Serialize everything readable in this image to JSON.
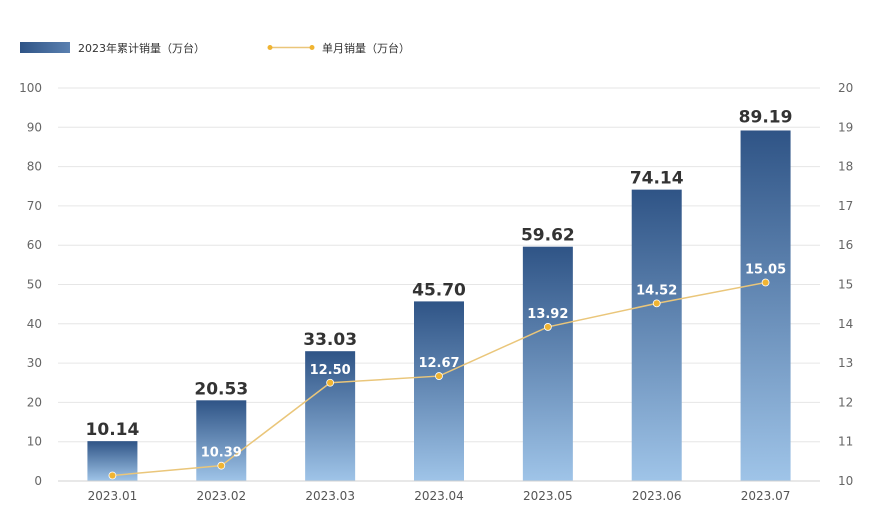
{
  "legend": {
    "cumulative_label": "2023年累计销量（万台）",
    "monthly_label": "单月销量（万台）"
  },
  "colors": {
    "bar_top": "#2f5486",
    "bar_bottom": "#9fc4e8",
    "line": "#eac67a",
    "marker": "#f0b432",
    "highlight_label": "#e8772e"
  },
  "chart_data": {
    "type": "bar",
    "categories": [
      "2023.01",
      "2023.02",
      "2023.03",
      "2023.04",
      "2023.05",
      "2023.06",
      "2023.07"
    ],
    "series": [
      {
        "name": "2023年累计销量（万台）",
        "type": "bar",
        "axis": "left",
        "values": [
          10.14,
          20.53,
          33.03,
          45.7,
          59.62,
          74.14,
          89.19
        ],
        "labels": [
          "10.14",
          "20.53",
          "33.03",
          "45.70",
          "59.62",
          "74.14",
          "89.19"
        ]
      },
      {
        "name": "单月销量（万台）",
        "type": "line",
        "axis": "right",
        "values": [
          10.14,
          10.39,
          12.5,
          12.67,
          13.92,
          14.52,
          15.05
        ],
        "labels": [
          "",
          "10.39",
          "12.50",
          "12.67",
          "13.92",
          "14.52",
          "15.05"
        ]
      }
    ],
    "y_left": {
      "lim": [
        0,
        100
      ],
      "ticks": [
        "0",
        "10",
        "20",
        "30",
        "40",
        "50",
        "60",
        "70",
        "80",
        "90",
        "100"
      ]
    },
    "y_right": {
      "lim": [
        10,
        20
      ],
      "ticks": [
        "10",
        "11",
        "12",
        "13",
        "14",
        "15",
        "16",
        "17",
        "18",
        "19",
        "20"
      ]
    },
    "grid": true,
    "legend_position": "top-left",
    "highlight_last_bar_label": true
  }
}
